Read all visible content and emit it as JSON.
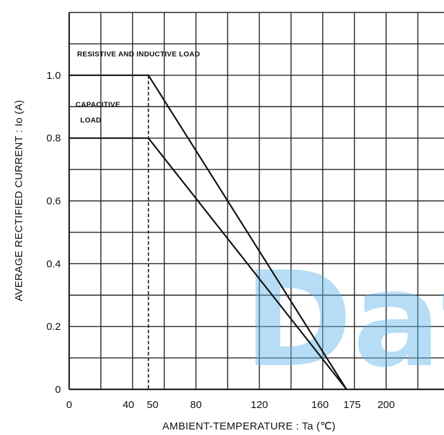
{
  "chart_data": {
    "type": "line",
    "title": "",
    "xlabel": "AMBIENT-TEMPERATURE : Ta (℃)",
    "ylabel": "AVERAGE RECTIFIED CURRENT : Io (A)",
    "xlim": [
      0,
      240
    ],
    "ylim": [
      0,
      1.2
    ],
    "x_ticks": [
      {
        "value": 0,
        "label": "0"
      },
      {
        "value": 40,
        "label": "40"
      },
      {
        "value": 50,
        "label": "50"
      },
      {
        "value": 80,
        "label": "80"
      },
      {
        "value": 120,
        "label": "120"
      },
      {
        "value": 160,
        "label": "160"
      },
      {
        "value": 175,
        "label": "175"
      },
      {
        "value": 200,
        "label": "200"
      }
    ],
    "y_ticks": [
      {
        "value": 0,
        "label": "0"
      },
      {
        "value": 0.2,
        "label": "0.2"
      },
      {
        "value": 0.4,
        "label": "0.4"
      },
      {
        "value": 0.6,
        "label": "0.6"
      },
      {
        "value": 0.8,
        "label": "0.8"
      },
      {
        "value": 1.0,
        "label": "1.0"
      }
    ],
    "grid": true,
    "grid_step_x": 20,
    "grid_step_y": 0.1,
    "series": [
      {
        "name": "RESISTIVE AND INDUCTIVE LOAD",
        "x": [
          0,
          50,
          175
        ],
        "y": [
          1.0,
          1.0,
          0
        ]
      },
      {
        "name": "CAPACITIVE LOAD",
        "x": [
          0,
          50,
          175
        ],
        "y": [
          0.8,
          0.8,
          0
        ]
      }
    ],
    "annotations": [
      {
        "text": "RESISTIVE AND INDUCTIVE LOAD",
        "x": 5,
        "y": 1.06
      },
      {
        "text": "CAPACITIVE",
        "x": 4,
        "y": 0.9
      },
      {
        "text": "LOAD",
        "x": 7,
        "y": 0.85
      }
    ],
    "reference_lines": [
      {
        "orientation": "vertical",
        "x": 50,
        "style": "dashed",
        "y_range": [
          0,
          1.0
        ]
      }
    ],
    "watermark": "Dat",
    "line_color": "#111111",
    "grid_color": "#222222",
    "watermark_color": "#5fb6ea"
  }
}
